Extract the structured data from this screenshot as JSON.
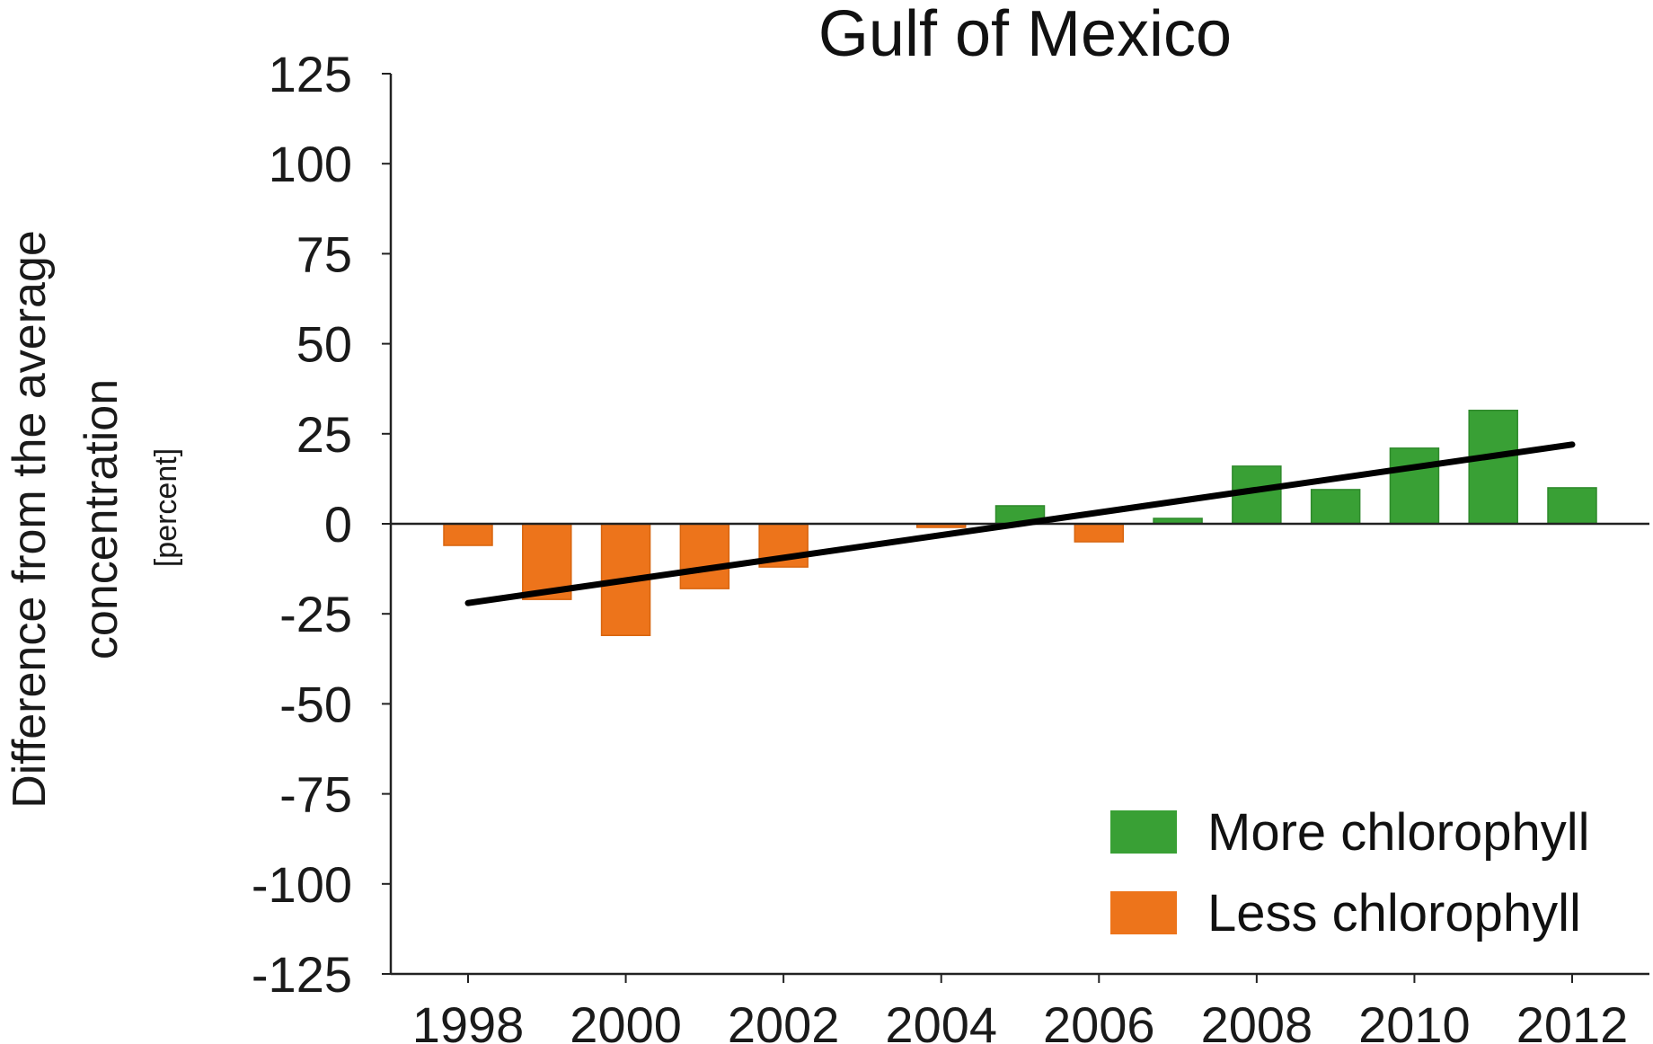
{
  "chart_data": {
    "type": "bar",
    "title": "Gulf of Mexico",
    "xlabel": "",
    "ylabel_lines": [
      "Difference from the average",
      "concentration"
    ],
    "ylabel_unit": "[percent]",
    "ylim": [
      -125,
      125
    ],
    "yticks": [
      125,
      100,
      75,
      50,
      25,
      0,
      -25,
      -50,
      -75,
      -100,
      -125
    ],
    "ytick_labels": [
      "125",
      "100",
      "75",
      "50",
      "25",
      "0",
      "-25",
      "-50",
      "-75",
      "-100",
      "-125"
    ],
    "xticks": [
      1998,
      2000,
      2002,
      2004,
      2006,
      2008,
      2010,
      2012
    ],
    "xtick_labels": [
      "1998",
      "2000",
      "2002",
      "2004",
      "2006",
      "2008",
      "2010",
      "2012"
    ],
    "x_range": [
      1998,
      2012
    ],
    "years": [
      1998,
      1999,
      2000,
      2001,
      2002,
      2003,
      2004,
      2005,
      2006,
      2007,
      2008,
      2009,
      2010,
      2011,
      2012
    ],
    "values": [
      -6,
      -21,
      -31,
      -18,
      -12,
      0,
      -1,
      5,
      -5,
      1.5,
      16,
      9.5,
      21,
      31.5,
      10
    ],
    "trendline": {
      "x": [
        1998,
        2012
      ],
      "y": [
        -22,
        22
      ]
    },
    "grid": false,
    "legend": {
      "position": "bottom-right",
      "entries": [
        {
          "label": "More chlorophyll",
          "color": "#39a035"
        },
        {
          "label": "Less chlorophyll",
          "color": "#ed741b"
        }
      ]
    },
    "colors": {
      "positive": "#39a035",
      "positive_edge": "#2f8a2c",
      "negative": "#ed741b",
      "negative_edge": "#d8650f",
      "trend": "#000000",
      "axis": "#222222"
    }
  }
}
